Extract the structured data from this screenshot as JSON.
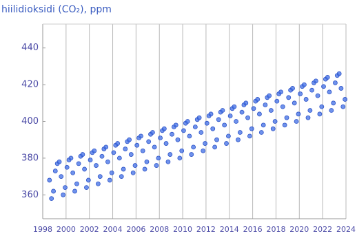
{
  "chart_data": {
    "type": "scatter",
    "title": "hiilidioksidi (CO₂), ppm",
    "color": "#3f6ee6",
    "x": [
      1998.58,
      1998.75,
      1998.92,
      1999.08,
      1999.25,
      1999.42,
      1999.58,
      1999.75,
      1999.92,
      2000.08,
      2000.25,
      2000.42,
      2000.58,
      2000.75,
      2000.92,
      2001.08,
      2001.25,
      2001.42,
      2001.58,
      2001.75,
      2001.92,
      2002.08,
      2002.25,
      2002.42,
      2002.58,
      2002.75,
      2002.92,
      2003.08,
      2003.25,
      2003.42,
      2003.58,
      2003.75,
      2003.92,
      2004.08,
      2004.25,
      2004.42,
      2004.58,
      2004.75,
      2004.92,
      2005.08,
      2005.25,
      2005.42,
      2005.58,
      2005.75,
      2005.92,
      2006.08,
      2006.25,
      2006.42,
      2006.58,
      2006.75,
      2006.92,
      2007.08,
      2007.25,
      2007.42,
      2007.58,
      2007.75,
      2007.92,
      2008.08,
      2008.25,
      2008.42,
      2008.58,
      2008.75,
      2008.92,
      2009.08,
      2009.25,
      2009.42,
      2009.58,
      2009.75,
      2009.92,
      2010.08,
      2010.25,
      2010.42,
      2010.58,
      2010.75,
      2010.92,
      2011.08,
      2011.25,
      2011.42,
      2011.58,
      2011.75,
      2011.92,
      2012.08,
      2012.25,
      2012.42,
      2012.58,
      2012.75,
      2012.92,
      2013.08,
      2013.25,
      2013.42,
      2013.58,
      2013.75,
      2013.92,
      2014.08,
      2014.25,
      2014.42,
      2014.58,
      2014.75,
      2014.92,
      2015.08,
      2015.25,
      2015.42,
      2015.58,
      2015.75,
      2015.92,
      2016.08,
      2016.25,
      2016.42,
      2016.58,
      2016.75,
      2016.92,
      2017.08,
      2017.25,
      2017.42,
      2017.58,
      2017.75,
      2017.92,
      2018.08,
      2018.25,
      2018.42,
      2018.58,
      2018.75,
      2018.92,
      2019.08,
      2019.25,
      2019.42,
      2019.58,
      2019.75,
      2019.92,
      2020.08,
      2020.25,
      2020.42,
      2020.58,
      2020.75,
      2020.92,
      2021.08,
      2021.25,
      2021.42,
      2021.58,
      2021.75,
      2021.92,
      2022.08,
      2022.25,
      2022.42,
      2022.58,
      2022.75,
      2022.92,
      2023.08,
      2023.25,
      2023.42,
      2023.58,
      2023.75,
      2023.92
    ],
    "values": [
      368,
      358,
      362,
      373,
      377,
      378,
      370,
      360,
      364,
      375,
      379,
      380,
      372,
      362,
      366,
      377,
      381,
      382,
      374,
      364,
      368,
      379,
      383,
      384,
      376,
      366,
      370,
      381,
      385,
      386,
      378,
      368,
      372,
      383,
      387,
      388,
      380,
      370,
      374,
      385,
      389,
      390,
      382,
      372,
      376,
      387,
      391,
      392,
      384,
      374,
      378,
      389,
      393,
      394,
      386,
      376,
      380,
      391,
      395,
      396,
      388,
      378,
      382,
      393,
      397,
      398,
      390,
      380,
      384,
      395,
      399,
      400,
      392,
      382,
      386,
      397,
      401,
      402,
      394,
      384,
      388,
      399,
      403,
      404,
      396,
      386,
      390,
      401,
      405,
      406,
      398,
      388,
      392,
      403,
      407,
      408,
      400,
      390,
      394,
      405,
      409,
      410,
      402,
      392,
      396,
      407,
      411,
      412,
      404,
      394,
      398,
      409,
      413,
      414,
      406,
      396,
      400,
      411,
      415,
      416,
      408,
      398,
      402,
      413,
      417,
      418,
      410,
      400,
      404,
      415,
      419,
      420,
      412,
      402,
      406,
      417,
      421,
      422,
      414,
      404,
      408,
      419,
      423,
      424,
      416,
      406,
      410,
      421,
      425,
      426,
      418,
      408,
      412
    ],
    "xlim": [
      1998,
      2024
    ],
    "xticks": [
      1998,
      2000,
      2002,
      2004,
      2006,
      2008,
      2010,
      2012,
      2014,
      2016,
      2018,
      2020,
      2022,
      2024
    ],
    "ylim": [
      347,
      453
    ],
    "yticks": [
      360,
      380,
      400,
      420,
      440
    ],
    "grid": true
  }
}
